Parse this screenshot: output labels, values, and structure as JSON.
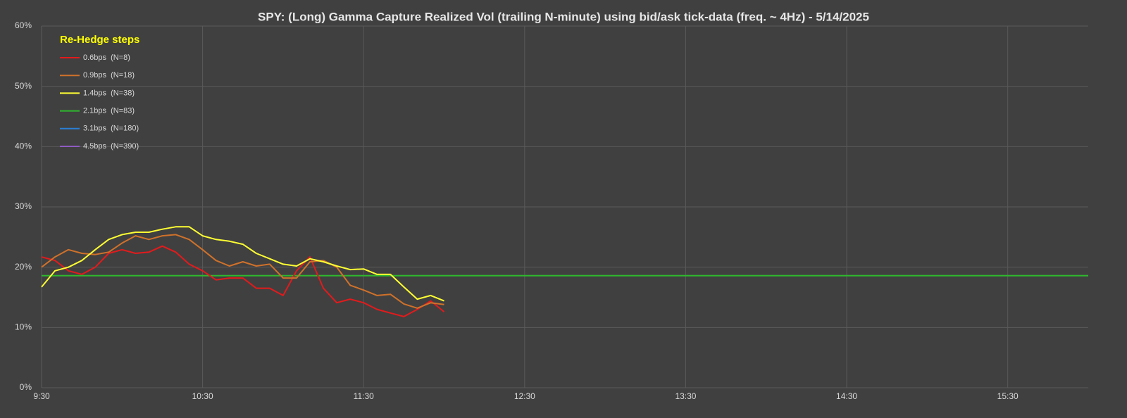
{
  "chart_data": {
    "type": "line",
    "title": "SPY: (Long) Gamma Capture Realized Vol (trailing N-minute) using bid/ask tick-data (freq. ~ 4Hz) - 5/14/2025",
    "legend_title": "Re-Hedge steps",
    "legend_title_color": "#ffff00",
    "legend": "top-left",
    "grid": true,
    "xlim": [
      570,
      960
    ],
    "xticks": [
      {
        "value": 570,
        "label": "9:30"
      },
      {
        "value": 630,
        "label": "10:30"
      },
      {
        "value": 690,
        "label": "11:30"
      },
      {
        "value": 750,
        "label": "12:30"
      },
      {
        "value": 810,
        "label": "13:30"
      },
      {
        "value": 870,
        "label": "14:30"
      },
      {
        "value": 930,
        "label": "15:30"
      }
    ],
    "ylim": [
      0,
      60
    ],
    "yticks": [
      {
        "value": 0,
        "label": "0%"
      },
      {
        "value": 10,
        "label": "10%"
      },
      {
        "value": 20,
        "label": "20%"
      },
      {
        "value": 30,
        "label": "30%"
      },
      {
        "value": 40,
        "label": "40%"
      },
      {
        "value": 50,
        "label": "50%"
      },
      {
        "value": 60,
        "label": "60%"
      }
    ],
    "series": [
      {
        "name": "0.6bps  (N=8)",
        "color": "#e31a1c",
        "x": [
          570,
          575,
          580,
          585,
          590,
          595,
          600,
          605,
          610,
          615,
          620,
          625,
          630,
          635,
          640,
          645,
          650,
          655,
          660,
          665,
          670,
          675,
          680,
          685,
          690,
          695,
          700,
          705,
          710,
          715,
          720
        ],
        "values": [
          21.7,
          21.1,
          19.4,
          18.8,
          20,
          22.3,
          22.9,
          22.3,
          22.5,
          23.5,
          22.5,
          20.5,
          19.4,
          17.9,
          18.2,
          18.2,
          16.5,
          16.5,
          15.3,
          19.4,
          21.7,
          16.5,
          14.1,
          14.7,
          14.1,
          13,
          12.4,
          11.8,
          13,
          14.4,
          12.6
        ]
      },
      {
        "name": "0.9bps  (N=18)",
        "color": "#d0712a",
        "x": [
          570,
          575,
          580,
          585,
          590,
          595,
          600,
          605,
          610,
          615,
          620,
          625,
          630,
          635,
          640,
          645,
          650,
          655,
          660,
          665,
          670,
          675,
          680,
          685,
          690,
          695,
          700,
          705,
          710,
          715,
          720
        ],
        "values": [
          20,
          21.7,
          22.9,
          22.3,
          22.1,
          22.5,
          24,
          25.2,
          24.6,
          25.2,
          25.4,
          24.6,
          22.9,
          21.1,
          20.2,
          20.9,
          20.2,
          20.5,
          18.2,
          18.2,
          20.9,
          21.1,
          20,
          17,
          16.2,
          15.3,
          15.5,
          13.9,
          13.2,
          14.1,
          13.8
        ]
      },
      {
        "name": "1.4bps  (N=38)",
        "color": "#ffff33",
        "x": [
          570,
          575,
          580,
          585,
          590,
          595,
          600,
          605,
          610,
          615,
          620,
          625,
          630,
          635,
          640,
          645,
          650,
          655,
          660,
          665,
          670,
          675,
          680,
          685,
          690,
          695,
          700,
          705,
          710,
          715,
          720
        ],
        "values": [
          16.7,
          19.4,
          20,
          21.1,
          22.9,
          24.6,
          25.4,
          25.8,
          25.8,
          26.3,
          26.7,
          26.7,
          25.2,
          24.6,
          24.3,
          23.8,
          22.3,
          21.4,
          20.5,
          20.2,
          21.4,
          20.9,
          20.2,
          19.6,
          19.7,
          18.8,
          18.8,
          16.7,
          14.7,
          15.3,
          14.4
        ]
      },
      {
        "name": "2.1bps  (N=83)",
        "color": "#2eb82e",
        "x": [
          570,
          960
        ],
        "values": [
          18.6,
          18.6
        ]
      },
      {
        "name": "3.1bps  (N=180)",
        "color": "#2a7fd4",
        "x": [],
        "values": []
      },
      {
        "name": "4.5bps  (N=390)",
        "color": "#8e5bc2",
        "x": [],
        "values": []
      }
    ]
  }
}
